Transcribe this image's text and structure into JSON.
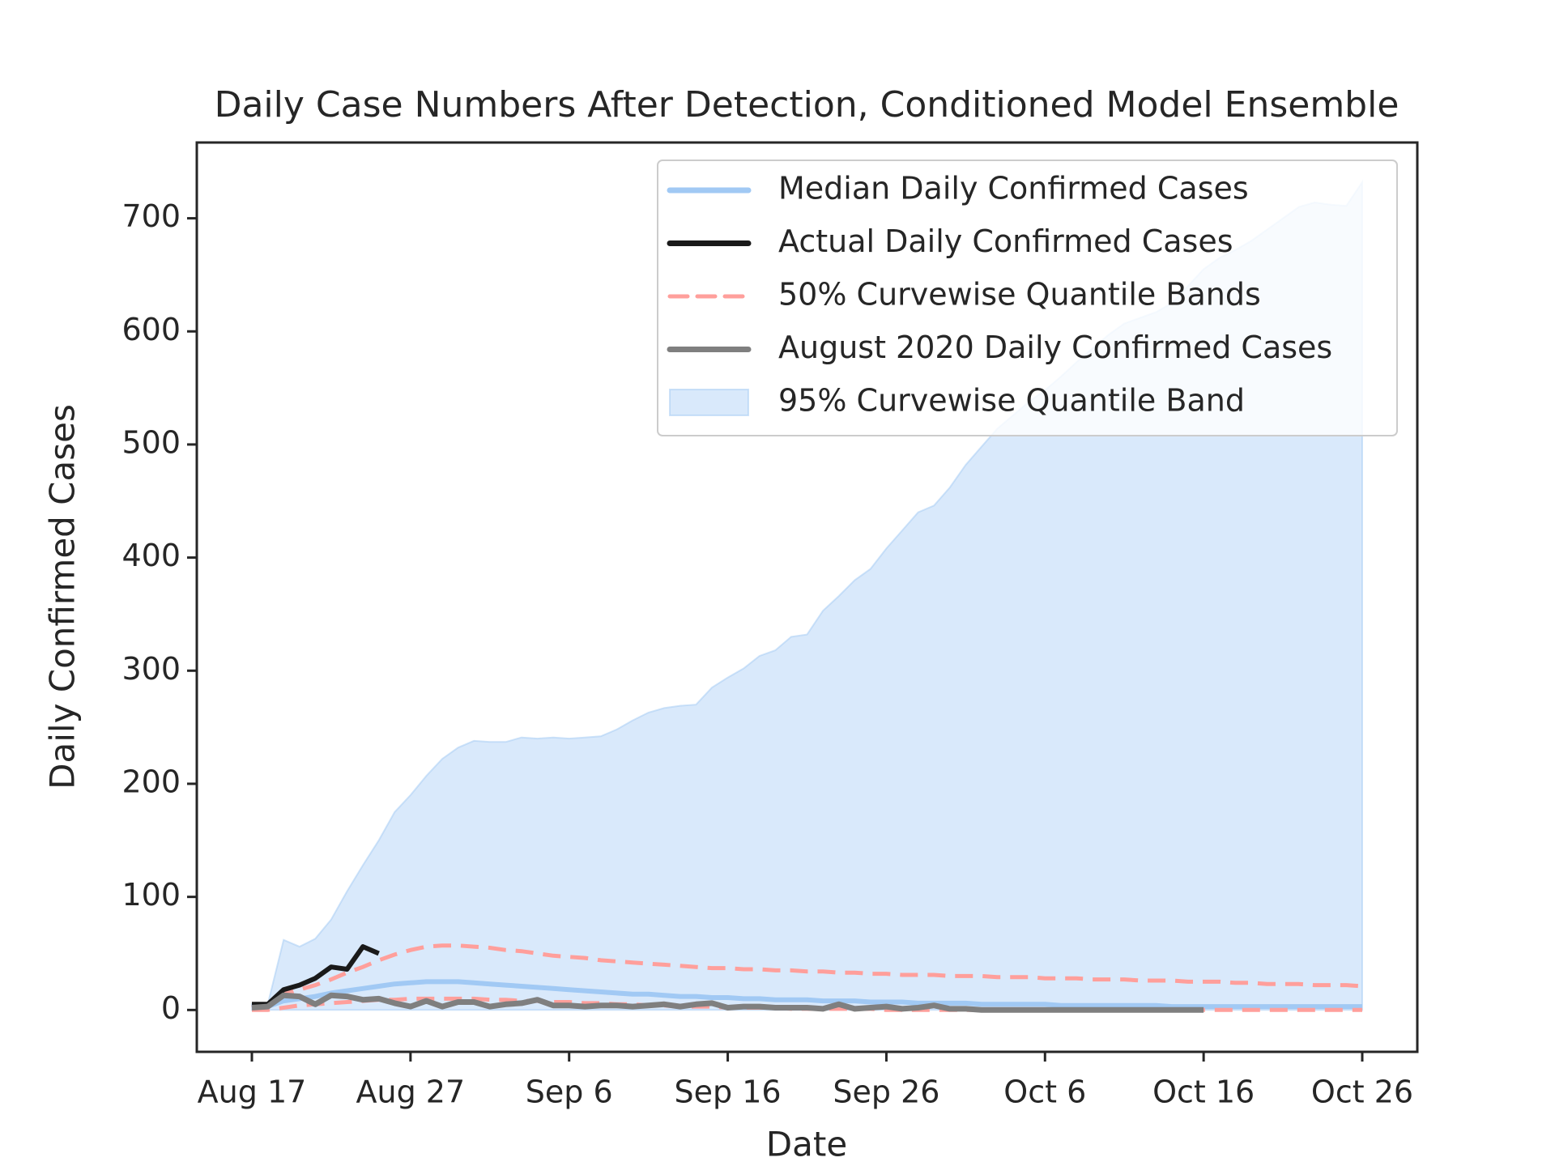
{
  "chart_data": {
    "type": "line",
    "title": "Daily Case Numbers After Detection, Conditioned Model Ensemble",
    "x_label": "Date",
    "y_label": "Daily Confirmed Cases",
    "categories": [
      "Aug 17",
      null,
      null,
      null,
      null,
      null,
      null,
      null,
      null,
      null,
      "Aug 27",
      null,
      null,
      null,
      null,
      null,
      null,
      null,
      null,
      null,
      "Sep 6",
      null,
      null,
      null,
      null,
      null,
      null,
      null,
      null,
      null,
      "Sep 16",
      null,
      null,
      null,
      null,
      null,
      null,
      null,
      null,
      null,
      "Sep 26",
      null,
      null,
      null,
      null,
      null,
      null,
      null,
      null,
      null,
      "Oct 6",
      null,
      null,
      null,
      null,
      null,
      null,
      null,
      null,
      null,
      "Oct 16",
      null,
      null,
      null,
      null,
      null,
      null,
      null,
      null,
      null,
      "Oct 26"
    ],
    "ylim": [
      -37,
      767
    ],
    "yticks": [
      0,
      100,
      200,
      300,
      400,
      500,
      600,
      700
    ],
    "legend": "upper right",
    "series": [
      {
        "name": "Median Daily Confirmed Cases",
        "kind": "line",
        "color": "#a1c9f4",
        "values": [
          2,
          3,
          8,
          10,
          12,
          15,
          17,
          19,
          21,
          23,
          24,
          25,
          25,
          25,
          24,
          23,
          22,
          21,
          20,
          19,
          18,
          17,
          16,
          15,
          14,
          14,
          13,
          12,
          12,
          11,
          11,
          10,
          10,
          9,
          9,
          9,
          8,
          8,
          8,
          7,
          7,
          7,
          6,
          6,
          6,
          6,
          5,
          5,
          5,
          5,
          5,
          4,
          4,
          4,
          4,
          4,
          4,
          4,
          3,
          3,
          3,
          3,
          3,
          3,
          3,
          3,
          3,
          3,
          3,
          3,
          3
        ]
      },
      {
        "name": "Actual Daily Confirmed Cases",
        "kind": "line",
        "color": "#1a1a1a",
        "values": [
          5,
          5,
          18,
          22,
          28,
          38,
          36,
          56,
          50,
          null,
          null,
          null,
          null,
          null,
          null,
          null,
          null,
          null,
          null,
          null,
          null,
          null,
          null,
          null,
          null,
          null,
          null,
          null,
          null,
          null,
          null,
          null,
          null,
          null,
          null,
          null,
          null,
          null,
          null,
          null,
          null,
          null,
          null,
          null,
          null,
          null,
          null,
          null,
          null,
          null,
          null,
          null,
          null,
          null,
          null,
          null,
          null,
          null,
          null,
          null,
          null,
          null,
          null,
          null,
          null,
          null,
          null,
          null,
          null,
          null,
          null
        ]
      },
      {
        "name": "50% Curvewise Quantile Bands",
        "kind": "dashed-band",
        "color": "#ff9f9b",
        "upper": [
          2,
          5,
          14,
          18,
          22,
          27,
          33,
          38,
          44,
          49,
          53,
          56,
          57,
          57,
          56,
          55,
          53,
          52,
          50,
          48,
          47,
          46,
          44,
          43,
          42,
          41,
          40,
          39,
          38,
          37,
          37,
          36,
          36,
          35,
          35,
          34,
          34,
          33,
          33,
          32,
          32,
          31,
          31,
          31,
          30,
          30,
          30,
          29,
          29,
          29,
          28,
          28,
          28,
          27,
          27,
          27,
          26,
          26,
          26,
          25,
          25,
          25,
          24,
          24,
          23,
          23,
          23,
          22,
          22,
          22,
          21
        ],
        "lower": [
          0,
          0,
          2,
          4,
          5,
          6,
          7,
          8,
          9,
          9,
          10,
          10,
          10,
          10,
          10,
          9,
          9,
          8,
          8,
          7,
          7,
          6,
          6,
          5,
          5,
          4,
          4,
          3,
          3,
          3,
          2,
          2,
          2,
          2,
          1,
          1,
          1,
          1,
          1,
          1,
          0,
          0,
          0,
          0,
          0,
          0,
          0,
          0,
          0,
          0,
          0,
          0,
          0,
          0,
          0,
          0,
          0,
          0,
          0,
          0,
          0,
          0,
          0,
          0,
          0,
          0,
          0,
          0,
          0,
          0,
          0
        ]
      },
      {
        "name": "August 2020 Daily Confirmed Cases",
        "kind": "line",
        "color": "#7f7f7f",
        "values": [
          2,
          3,
          13,
          12,
          5,
          13,
          12,
          9,
          10,
          6,
          3,
          8,
          3,
          7,
          7,
          3,
          5,
          6,
          9,
          4,
          4,
          3,
          4,
          4,
          3,
          4,
          5,
          3,
          5,
          6,
          2,
          3,
          3,
          2,
          2,
          2,
          1,
          5,
          1,
          2,
          3,
          1,
          2,
          4,
          1,
          1,
          0,
          0,
          0,
          0,
          0,
          0,
          0,
          0,
          0,
          0,
          0,
          0,
          0,
          0,
          0,
          null,
          null,
          null,
          null,
          null,
          null,
          null,
          null,
          null,
          null
        ]
      },
      {
        "name": "95% Curvewise Quantile Band",
        "kind": "area-band",
        "color": "#a1c9f4",
        "upper": [
          5,
          5,
          62,
          56,
          63,
          80,
          105,
          128,
          150,
          175,
          190,
          207,
          222,
          232,
          238,
          237,
          237,
          241,
          240,
          241,
          240,
          241,
          242,
          248,
          256,
          263,
          267,
          269,
          270,
          285,
          294,
          302,
          313,
          318,
          330,
          332,
          353,
          366,
          380,
          390,
          408,
          424,
          440,
          446,
          462,
          482,
          498,
          514,
          526,
          538,
          548,
          560,
          573,
          585,
          597,
          607,
          612,
          617,
          625,
          640,
          655,
          665,
          672,
          680,
          690,
          700,
          710,
          714,
          712,
          711,
          732
        ],
        "lower": [
          0,
          0,
          0,
          0,
          0,
          0,
          0,
          0,
          0,
          0,
          0,
          0,
          0,
          0,
          0,
          0,
          0,
          0,
          0,
          0,
          0,
          0,
          0,
          0,
          0,
          0,
          0,
          0,
          0,
          0,
          0,
          0,
          0,
          0,
          0,
          0,
          0,
          0,
          0,
          0,
          0,
          0,
          0,
          0,
          0,
          0,
          0,
          0,
          0,
          0,
          0,
          0,
          0,
          0,
          0,
          0,
          0,
          0,
          0,
          0,
          0,
          0,
          0,
          0,
          0,
          0,
          0,
          0,
          0,
          0,
          0
        ]
      }
    ]
  }
}
